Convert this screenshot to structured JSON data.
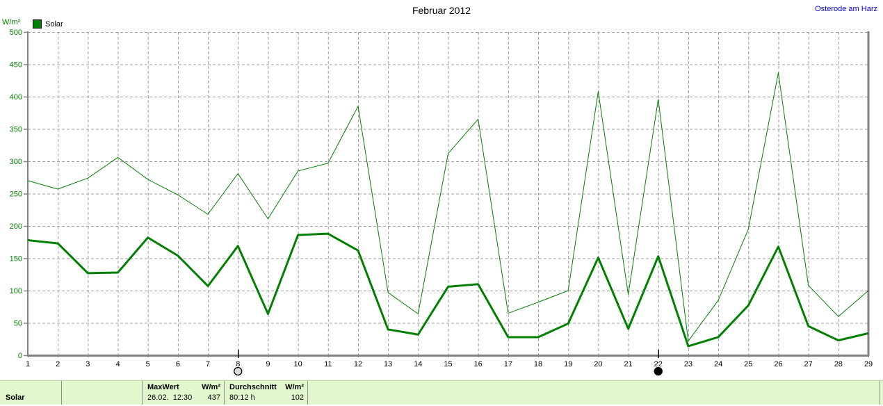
{
  "header": {
    "title": "Februar 2012",
    "station": "Osterode am Harz",
    "axis_unit": "W/m²",
    "legend_label": "Solar"
  },
  "chart_data": {
    "type": "line",
    "title": "Februar 2012",
    "ylabel": "W/m²",
    "ylim": [
      0,
      500
    ],
    "ytick_step": 50,
    "grid": "dashed",
    "legend_position": "top-left",
    "x": [
      1,
      2,
      3,
      4,
      5,
      6,
      7,
      8,
      9,
      10,
      11,
      12,
      13,
      14,
      15,
      16,
      17,
      18,
      19,
      20,
      21,
      22,
      23,
      24,
      25,
      26,
      27,
      28,
      29
    ],
    "series": [
      {
        "name": "solar_daily_max",
        "color": "#008000",
        "stroke_width": 1,
        "values": [
          270,
          257,
          274,
          306,
          272,
          248,
          218,
          281,
          211,
          285,
          297,
          385,
          97,
          64,
          312,
          365,
          65,
          82,
          100,
          408,
          94,
          396,
          22,
          85,
          195,
          437,
          108,
          60,
          100
        ]
      },
      {
        "name": "solar_daily_average",
        "color": "#008000",
        "stroke_width": 3,
        "values": [
          178,
          173,
          127,
          128,
          182,
          154,
          107,
          169,
          64,
          186,
          188,
          162,
          40,
          32,
          106,
          110,
          28,
          28,
          49,
          151,
          41,
          153,
          14,
          28,
          77,
          168,
          45,
          23,
          34
        ]
      }
    ],
    "annotations": [
      {
        "day": 8,
        "marker": "open-circle"
      },
      {
        "day": 22,
        "marker": "filled-circle"
      }
    ]
  },
  "table": {
    "row_label": "Solar",
    "columns": [
      {
        "header_left": "MaxWert",
        "header_right": "W/m²",
        "value_left": "26.02.  12:30",
        "value_right": "437"
      },
      {
        "header_left": "Durchschnitt",
        "header_right": "W/m²",
        "value_left": "80:12 h",
        "value_right": "102"
      }
    ]
  },
  "colors": {
    "series_green": "#008000",
    "axis_gray": "#808080",
    "grid_gray": "#9c9c9c",
    "tick_label_green": "#008000",
    "station_blue": "#0000ee",
    "table_bg": "#e2f7ce"
  }
}
